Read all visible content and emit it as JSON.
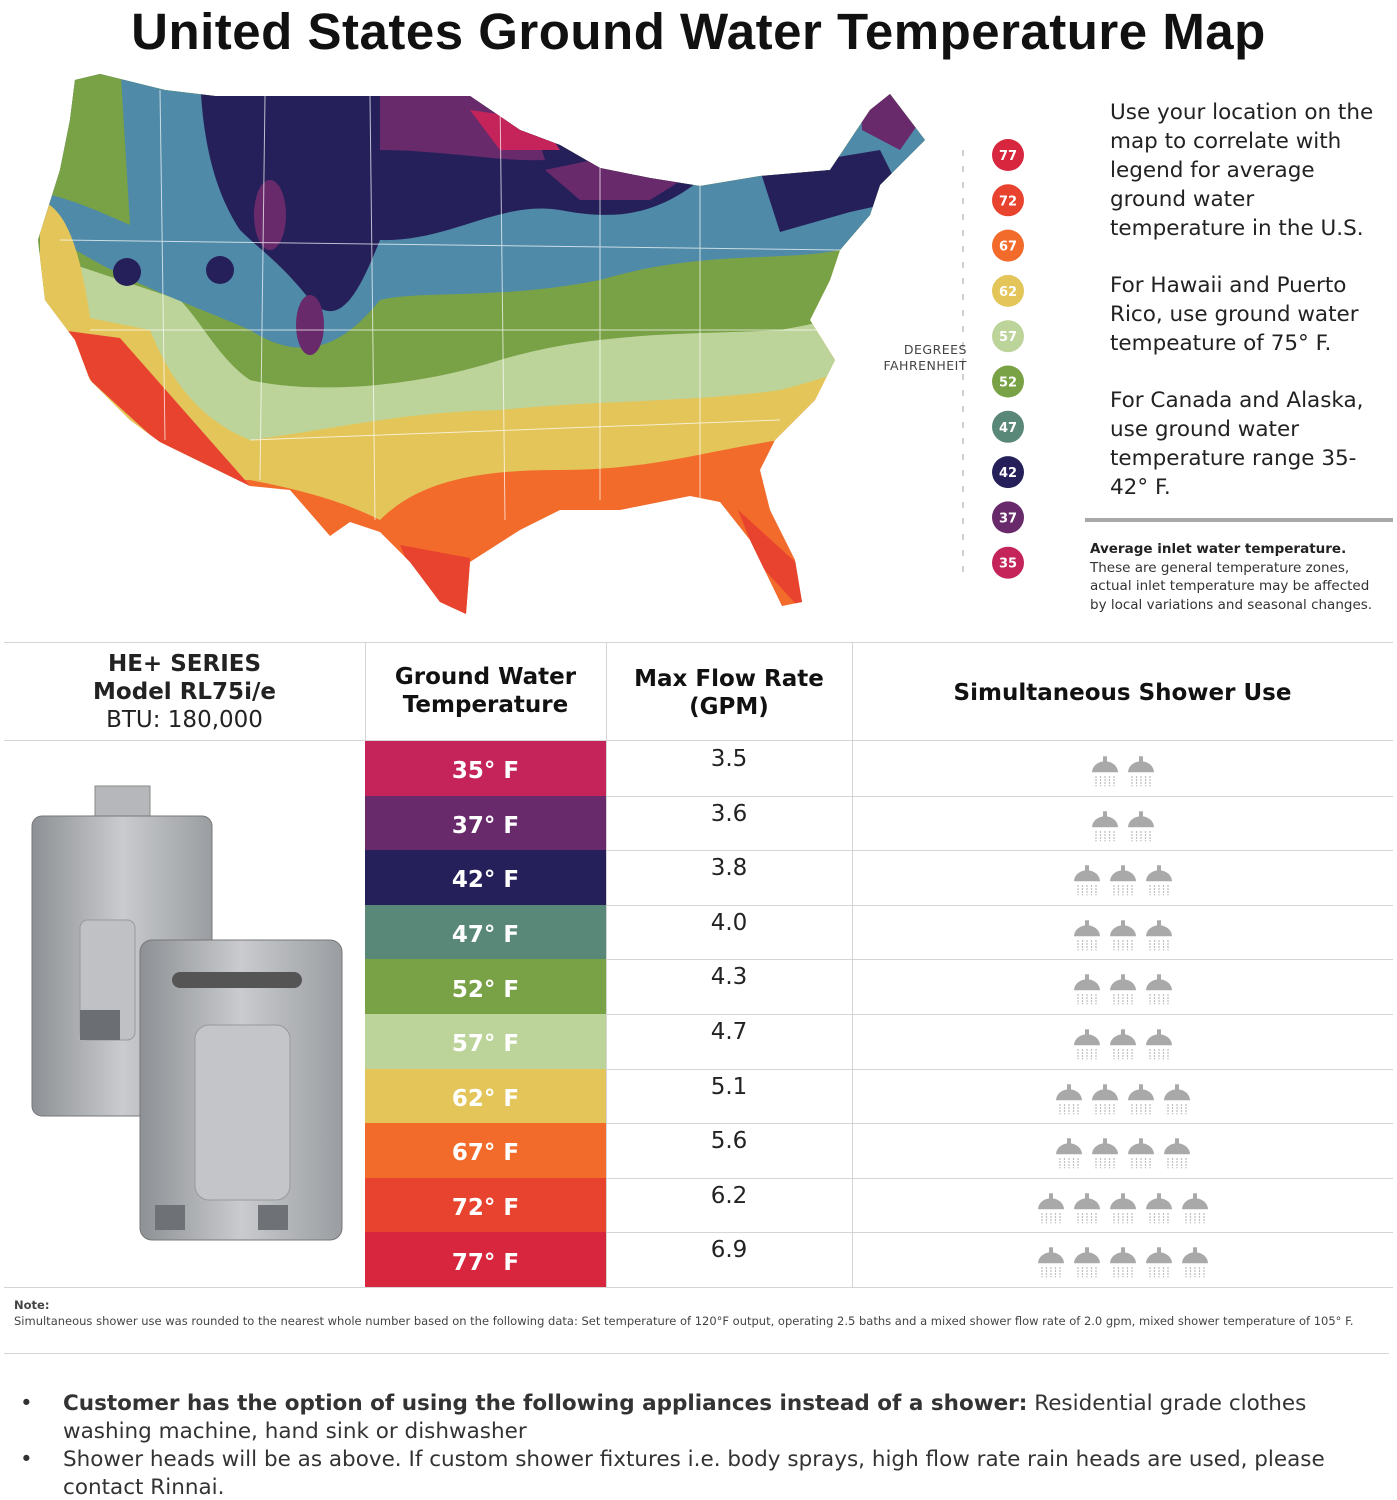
{
  "title": "United States Ground Water Temperature Map",
  "map": {
    "legend_title": [
      "DEGREES",
      "FAHRENHEIT"
    ],
    "legend": [
      {
        "label": "77",
        "color": "#d7263d"
      },
      {
        "label": "72",
        "color": "#e8432f"
      },
      {
        "label": "67",
        "color": "#f26b2a"
      },
      {
        "label": "62",
        "color": "#e3c55a"
      },
      {
        "label": "57",
        "color": "#bcd49a"
      },
      {
        "label": "52",
        "color": "#79a246"
      },
      {
        "label": "47",
        "color": "#5a8878"
      },
      {
        "label": "42",
        "color": "#26205a"
      },
      {
        "label": "37",
        "color": "#692a6c"
      },
      {
        "label": "35",
        "color": "#c4245a"
      }
    ]
  },
  "info": {
    "paragraphs": [
      "Use your location on the map to correlate with legend for average ground water temperature in the U.S.",
      "For Hawaii and Puerto Rico, use ground water tempeature of 75° F.",
      "For Canada and Alaska, use ground water temperature range 35-42° F."
    ],
    "caption_bold": "Average inlet water temperature.",
    "caption": "These are general temperature zones, actual inlet temperature may be affected by local variations and seasonal changes."
  },
  "table": {
    "model": [
      "HE+ SERIES",
      "Model RL75i/e",
      "BTU: 180,000"
    ],
    "headers": [
      "Ground Water Temperature",
      "Max Flow Rate (GPM)",
      "Simultaneous Shower Use"
    ],
    "rows": [
      {
        "temp": "35° F",
        "color": "#c4245a",
        "flow": "3.5",
        "showers": 2
      },
      {
        "temp": "37° F",
        "color": "#692a6c",
        "flow": "3.6",
        "showers": 2
      },
      {
        "temp": "42° F",
        "color": "#26205a",
        "flow": "3.8",
        "showers": 3
      },
      {
        "temp": "47° F",
        "color": "#5a8878",
        "flow": "4.0",
        "showers": 3
      },
      {
        "temp": "52° F",
        "color": "#79a246",
        "flow": "4.3",
        "showers": 3
      },
      {
        "temp": "57° F",
        "color": "#bcd49a",
        "flow": "4.7",
        "showers": 3
      },
      {
        "temp": "62° F",
        "color": "#e3c55a",
        "flow": "5.1",
        "showers": 4
      },
      {
        "temp": "67° F",
        "color": "#f26b2a",
        "flow": "5.6",
        "showers": 4
      },
      {
        "temp": "72° F",
        "color": "#e8432f",
        "flow": "6.2",
        "showers": 5
      },
      {
        "temp": "77° F",
        "color": "#d7263d",
        "flow": "6.9",
        "showers": 5
      }
    ]
  },
  "note": {
    "label": "Note:",
    "text": "Simultaneous shower use was rounded to the nearest whole number based on the following data: Set temperature of 120°F output, operating 2.5 baths and a mixed shower flow rate of 2.0 gpm, mixed shower temperature of 105° F."
  },
  "bullets": [
    {
      "bold": "Customer has the option of using the following appliances instead of a shower:",
      "text": "Residential grade clothes washing machine, hand sink or dishwasher"
    },
    {
      "text": "Shower heads will be as above. If custom shower fixtures  i.e. body sprays, high flow rate rain heads are used, please contact Rinnai."
    }
  ]
}
